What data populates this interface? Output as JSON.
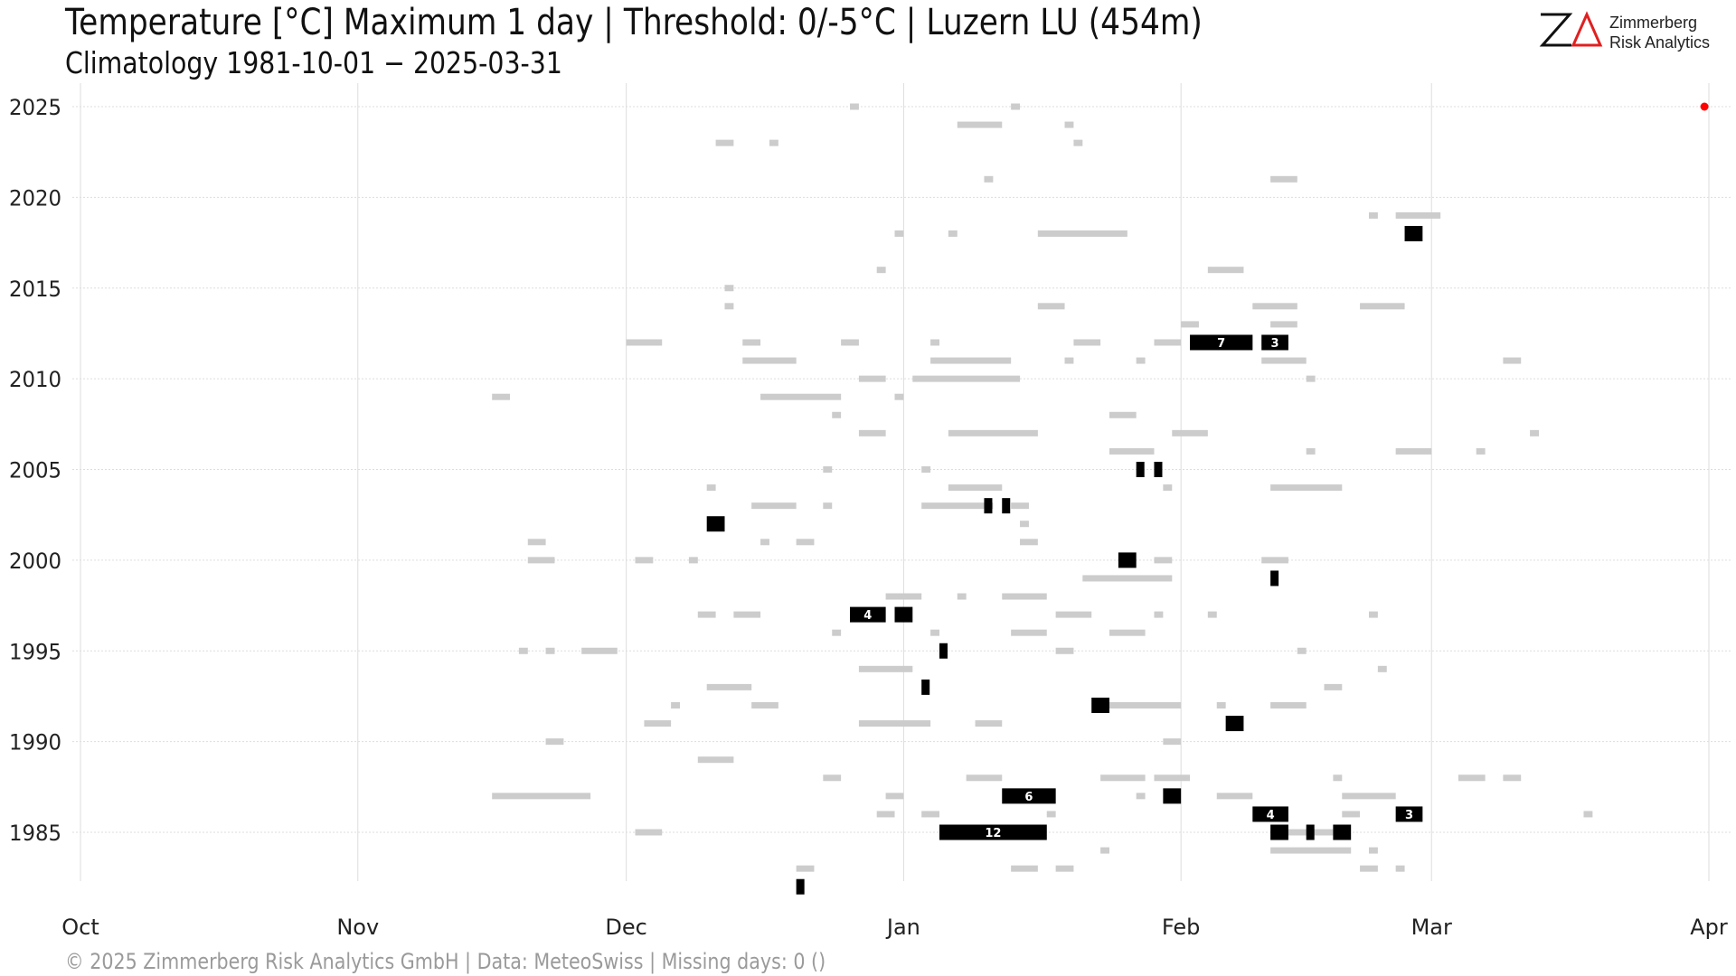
{
  "header": {
    "title": "Temperature [°C] Maximum 1 day | Threshold: 0/-5°C | Luzern  LU (454m)",
    "subtitle": "Climatology 1981-10-01 − 2025-03-31"
  },
  "logo": {
    "line1": "Zimmerberg",
    "line2": "Risk Analytics",
    "mark_color": "#111111",
    "accent_color": "#e02020"
  },
  "footer": {
    "text": "©  2025 Zimmerberg Risk Analytics GmbH | Data: MeteoSwiss | Missing days: 0 ()"
  },
  "chart_data": {
    "type": "timeline",
    "x_axis": {
      "range_days": [
        0,
        182
      ],
      "ticks": [
        {
          "label": "Oct",
          "day": 0
        },
        {
          "label": "Nov",
          "day": 31
        },
        {
          "label": "Dec",
          "day": 61
        },
        {
          "label": "Jan",
          "day": 92
        },
        {
          "label": "Feb",
          "day": 123
        },
        {
          "label": "Mar",
          "day": 151
        },
        {
          "label": "Apr",
          "day": 182
        }
      ]
    },
    "y_axis": {
      "range": [
        1981,
        2025
      ],
      "ticks": [
        1985,
        1990,
        1995,
        2000,
        2005,
        2010,
        2015,
        2020,
        2025
      ]
    },
    "grid": true,
    "colors": {
      "below_0": "#cccccc",
      "below_minus5": "#000000",
      "current_marker": "#ff0000",
      "grid": "#dddddd"
    },
    "current_marker": {
      "year": 2025,
      "day": 181
    },
    "light_runs": [
      {
        "year": 2025,
        "day": 86,
        "len": 1
      },
      {
        "year": 2025,
        "day": 104,
        "len": 1
      },
      {
        "year": 2024,
        "day": 98,
        "len": 5
      },
      {
        "year": 2024,
        "day": 110,
        "len": 1
      },
      {
        "year": 2023,
        "day": 71,
        "len": 2
      },
      {
        "year": 2023,
        "day": 77,
        "len": 1
      },
      {
        "year": 2023,
        "day": 111,
        "len": 1
      },
      {
        "year": 2021,
        "day": 101,
        "len": 1
      },
      {
        "year": 2021,
        "day": 133,
        "len": 3
      },
      {
        "year": 2019,
        "day": 144,
        "len": 1
      },
      {
        "year": 2019,
        "day": 147,
        "len": 5
      },
      {
        "year": 2018,
        "day": 91,
        "len": 1
      },
      {
        "year": 2018,
        "day": 97,
        "len": 1
      },
      {
        "year": 2018,
        "day": 107,
        "len": 10
      },
      {
        "year": 2016,
        "day": 89,
        "len": 1
      },
      {
        "year": 2016,
        "day": 126,
        "len": 4
      },
      {
        "year": 2015,
        "day": 72,
        "len": 1
      },
      {
        "year": 2014,
        "day": 72,
        "len": 1
      },
      {
        "year": 2014,
        "day": 107,
        "len": 3
      },
      {
        "year": 2014,
        "day": 131,
        "len": 5
      },
      {
        "year": 2014,
        "day": 143,
        "len": 5
      },
      {
        "year": 2013,
        "day": 123,
        "len": 2
      },
      {
        "year": 2013,
        "day": 133,
        "len": 3
      },
      {
        "year": 2012,
        "day": 61,
        "len": 4
      },
      {
        "year": 2012,
        "day": 74,
        "len": 2
      },
      {
        "year": 2012,
        "day": 85,
        "len": 2
      },
      {
        "year": 2012,
        "day": 95,
        "len": 1
      },
      {
        "year": 2012,
        "day": 111,
        "len": 3
      },
      {
        "year": 2012,
        "day": 120,
        "len": 3
      },
      {
        "year": 2012,
        "day": 132,
        "len": 3
      },
      {
        "year": 2011,
        "day": 74,
        "len": 6
      },
      {
        "year": 2011,
        "day": 95,
        "len": 9
      },
      {
        "year": 2011,
        "day": 110,
        "len": 1
      },
      {
        "year": 2011,
        "day": 118,
        "len": 1
      },
      {
        "year": 2011,
        "day": 132,
        "len": 5
      },
      {
        "year": 2011,
        "day": 159,
        "len": 2
      },
      {
        "year": 2010,
        "day": 87,
        "len": 3
      },
      {
        "year": 2010,
        "day": 93,
        "len": 12
      },
      {
        "year": 2010,
        "day": 137,
        "len": 1
      },
      {
        "year": 2009,
        "day": 46,
        "len": 2
      },
      {
        "year": 2009,
        "day": 76,
        "len": 9
      },
      {
        "year": 2009,
        "day": 91,
        "len": 1
      },
      {
        "year": 2008,
        "day": 84,
        "len": 1
      },
      {
        "year": 2008,
        "day": 115,
        "len": 3
      },
      {
        "year": 2007,
        "day": 87,
        "len": 3
      },
      {
        "year": 2007,
        "day": 97,
        "len": 10
      },
      {
        "year": 2007,
        "day": 122,
        "len": 4
      },
      {
        "year": 2007,
        "day": 162,
        "len": 1
      },
      {
        "year": 2006,
        "day": 115,
        "len": 5
      },
      {
        "year": 2006,
        "day": 137,
        "len": 1
      },
      {
        "year": 2006,
        "day": 147,
        "len": 4
      },
      {
        "year": 2006,
        "day": 156,
        "len": 1
      },
      {
        "year": 2005,
        "day": 83,
        "len": 1
      },
      {
        "year": 2005,
        "day": 94,
        "len": 1
      },
      {
        "year": 2004,
        "day": 70,
        "len": 1
      },
      {
        "year": 2004,
        "day": 97,
        "len": 6
      },
      {
        "year": 2004,
        "day": 121,
        "len": 1
      },
      {
        "year": 2004,
        "day": 133,
        "len": 8
      },
      {
        "year": 2003,
        "day": 75,
        "len": 5
      },
      {
        "year": 2003,
        "day": 83,
        "len": 1
      },
      {
        "year": 2003,
        "day": 94,
        "len": 8
      },
      {
        "year": 2003,
        "day": 104,
        "len": 2
      },
      {
        "year": 2002,
        "day": 105,
        "len": 1
      },
      {
        "year": 2001,
        "day": 50,
        "len": 2
      },
      {
        "year": 2001,
        "day": 76,
        "len": 1
      },
      {
        "year": 2001,
        "day": 80,
        "len": 2
      },
      {
        "year": 2001,
        "day": 105,
        "len": 2
      },
      {
        "year": 2000,
        "day": 50,
        "len": 3
      },
      {
        "year": 2000,
        "day": 62,
        "len": 2
      },
      {
        "year": 2000,
        "day": 68,
        "len": 1
      },
      {
        "year": 2000,
        "day": 120,
        "len": 2
      },
      {
        "year": 2000,
        "day": 132,
        "len": 3
      },
      {
        "year": 1999,
        "day": 112,
        "len": 10
      },
      {
        "year": 1998,
        "day": 90,
        "len": 4
      },
      {
        "year": 1998,
        "day": 98,
        "len": 1
      },
      {
        "year": 1998,
        "day": 103,
        "len": 5
      },
      {
        "year": 1997,
        "day": 69,
        "len": 2
      },
      {
        "year": 1997,
        "day": 73,
        "len": 3
      },
      {
        "year": 1997,
        "day": 87,
        "len": 2
      },
      {
        "year": 1997,
        "day": 109,
        "len": 4
      },
      {
        "year": 1997,
        "day": 120,
        "len": 1
      },
      {
        "year": 1997,
        "day": 126,
        "len": 1
      },
      {
        "year": 1997,
        "day": 144,
        "len": 1
      },
      {
        "year": 1996,
        "day": 84,
        "len": 1
      },
      {
        "year": 1996,
        "day": 95,
        "len": 1
      },
      {
        "year": 1996,
        "day": 104,
        "len": 4
      },
      {
        "year": 1996,
        "day": 115,
        "len": 4
      },
      {
        "year": 1995,
        "day": 49,
        "len": 1
      },
      {
        "year": 1995,
        "day": 52,
        "len": 1
      },
      {
        "year": 1995,
        "day": 56,
        "len": 4
      },
      {
        "year": 1995,
        "day": 109,
        "len": 2
      },
      {
        "year": 1995,
        "day": 136,
        "len": 1
      },
      {
        "year": 1994,
        "day": 87,
        "len": 6
      },
      {
        "year": 1994,
        "day": 145,
        "len": 1
      },
      {
        "year": 1993,
        "day": 70,
        "len": 5
      },
      {
        "year": 1993,
        "day": 139,
        "len": 2
      },
      {
        "year": 1992,
        "day": 66,
        "len": 1
      },
      {
        "year": 1992,
        "day": 75,
        "len": 3
      },
      {
        "year": 1992,
        "day": 115,
        "len": 8
      },
      {
        "year": 1992,
        "day": 127,
        "len": 1
      },
      {
        "year": 1992,
        "day": 133,
        "len": 4
      },
      {
        "year": 1991,
        "day": 63,
        "len": 3
      },
      {
        "year": 1991,
        "day": 87,
        "len": 8
      },
      {
        "year": 1991,
        "day": 100,
        "len": 3
      },
      {
        "year": 1990,
        "day": 52,
        "len": 2
      },
      {
        "year": 1990,
        "day": 121,
        "len": 2
      },
      {
        "year": 1989,
        "day": 69,
        "len": 4
      },
      {
        "year": 1988,
        "day": 83,
        "len": 2
      },
      {
        "year": 1988,
        "day": 99,
        "len": 4
      },
      {
        "year": 1988,
        "day": 114,
        "len": 5
      },
      {
        "year": 1988,
        "day": 120,
        "len": 4
      },
      {
        "year": 1988,
        "day": 140,
        "len": 1
      },
      {
        "year": 1988,
        "day": 154,
        "len": 3
      },
      {
        "year": 1988,
        "day": 159,
        "len": 2
      },
      {
        "year": 1987,
        "day": 46,
        "len": 11
      },
      {
        "year": 1987,
        "day": 90,
        "len": 2
      },
      {
        "year": 1987,
        "day": 118,
        "len": 1
      },
      {
        "year": 1987,
        "day": 127,
        "len": 4
      },
      {
        "year": 1987,
        "day": 141,
        "len": 6
      },
      {
        "year": 1986,
        "day": 89,
        "len": 2
      },
      {
        "year": 1986,
        "day": 94,
        "len": 2
      },
      {
        "year": 1986,
        "day": 108,
        "len": 1
      },
      {
        "year": 1986,
        "day": 141,
        "len": 2
      },
      {
        "year": 1986,
        "day": 168,
        "len": 1
      },
      {
        "year": 1985,
        "day": 62,
        "len": 3
      },
      {
        "year": 1985,
        "day": 135,
        "len": 5
      },
      {
        "year": 1984,
        "day": 114,
        "len": 1
      },
      {
        "year": 1984,
        "day": 133,
        "len": 9
      },
      {
        "year": 1984,
        "day": 144,
        "len": 1
      },
      {
        "year": 1983,
        "day": 80,
        "len": 2
      },
      {
        "year": 1983,
        "day": 104,
        "len": 3
      },
      {
        "year": 1983,
        "day": 109,
        "len": 2
      },
      {
        "year": 1983,
        "day": 143,
        "len": 2
      },
      {
        "year": 1983,
        "day": 147,
        "len": 1
      }
    ],
    "dark_runs": [
      {
        "year": 2018,
        "day": 148,
        "len": 2,
        "label": ""
      },
      {
        "year": 2012,
        "day": 124,
        "len": 7,
        "label": "7"
      },
      {
        "year": 2012,
        "day": 132,
        "len": 3,
        "label": "3"
      },
      {
        "year": 2005,
        "day": 118,
        "len": 1,
        "label": ""
      },
      {
        "year": 2005,
        "day": 120,
        "len": 1,
        "label": ""
      },
      {
        "year": 2003,
        "day": 101,
        "len": 1,
        "label": ""
      },
      {
        "year": 2003,
        "day": 103,
        "len": 1,
        "label": ""
      },
      {
        "year": 2002,
        "day": 70,
        "len": 2,
        "label": ""
      },
      {
        "year": 2000,
        "day": 116,
        "len": 2,
        "label": ""
      },
      {
        "year": 1999,
        "day": 133,
        "len": 1,
        "label": ""
      },
      {
        "year": 1997,
        "day": 86,
        "len": 4,
        "label": "4"
      },
      {
        "year": 1997,
        "day": 91,
        "len": 2,
        "label": ""
      },
      {
        "year": 1995,
        "day": 96,
        "len": 1,
        "label": ""
      },
      {
        "year": 1993,
        "day": 94,
        "len": 1,
        "label": ""
      },
      {
        "year": 1992,
        "day": 113,
        "len": 2,
        "label": ""
      },
      {
        "year": 1991,
        "day": 128,
        "len": 2,
        "label": ""
      },
      {
        "year": 1987,
        "day": 103,
        "len": 6,
        "label": "6"
      },
      {
        "year": 1987,
        "day": 121,
        "len": 2,
        "label": ""
      },
      {
        "year": 1986,
        "day": 131,
        "len": 4,
        "label": "4"
      },
      {
        "year": 1986,
        "day": 147,
        "len": 3,
        "label": "3"
      },
      {
        "year": 1985,
        "day": 96,
        "len": 12,
        "label": "12"
      },
      {
        "year": 1985,
        "day": 133,
        "len": 2,
        "label": ""
      },
      {
        "year": 1985,
        "day": 137,
        "len": 1,
        "label": ""
      },
      {
        "year": 1985,
        "day": 140,
        "len": 2,
        "label": ""
      },
      {
        "year": 1982,
        "day": 80,
        "len": 1,
        "label": ""
      }
    ]
  }
}
